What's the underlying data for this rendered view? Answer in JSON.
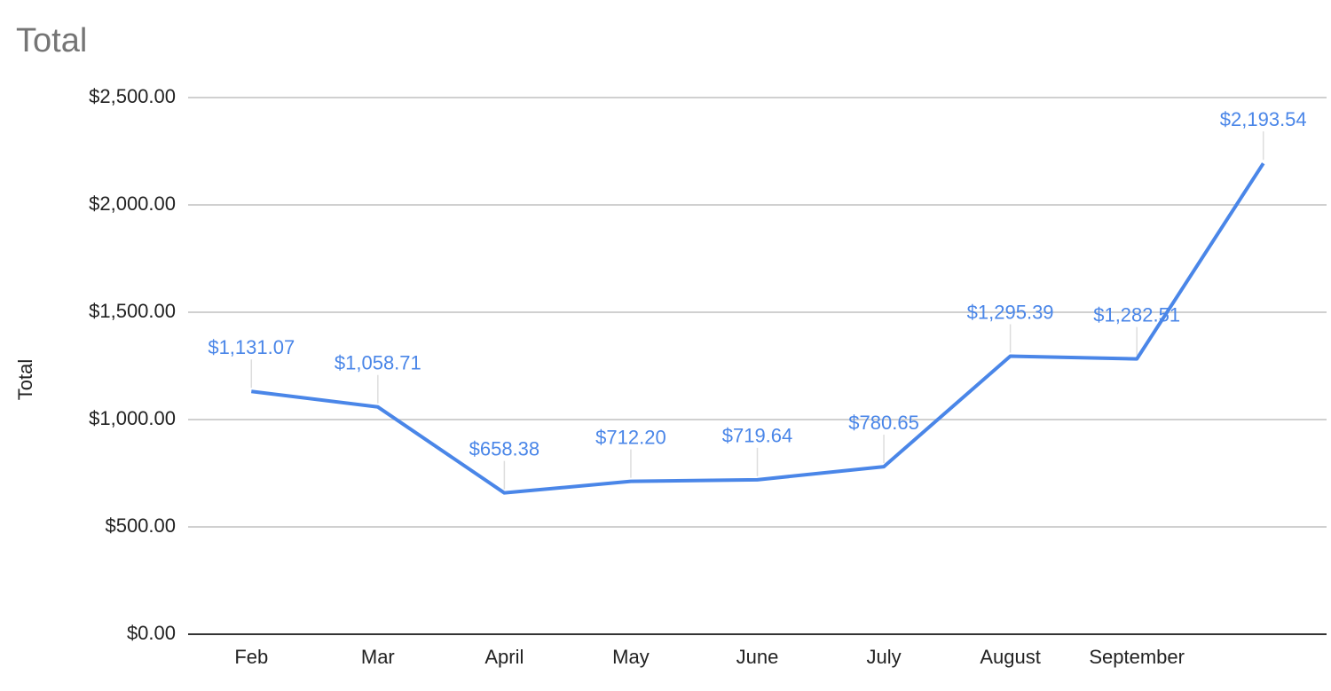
{
  "chart_data": {
    "type": "line",
    "title": "Total",
    "y_label": "Total",
    "categories": [
      "Feb",
      "Mar",
      "April",
      "May",
      "June",
      "July",
      "August",
      "September",
      null
    ],
    "values": [
      1131.07,
      1058.71,
      658.38,
      712.2,
      719.64,
      780.65,
      1295.39,
      1282.51,
      2193.54
    ],
    "value_labels": [
      "$1,131.07",
      "$1,058.71",
      "$658.38",
      "$712.20",
      "$719.64",
      "$780.65",
      "$1,295.39",
      "$1,282.51",
      "$2,193.54"
    ],
    "color": "#4a86e8",
    "ylim": [
      0,
      2500
    ],
    "yticks": [
      {
        "value": 0,
        "label": "$0.00"
      },
      {
        "value": 500,
        "label": "$500.00"
      },
      {
        "value": 1000,
        "label": "$1,000.00"
      },
      {
        "value": 1500,
        "label": "$1,500.00"
      },
      {
        "value": 2000,
        "label": "$2,000.00"
      },
      {
        "value": 2500,
        "label": "$2,500.00"
      }
    ],
    "grid": true
  }
}
